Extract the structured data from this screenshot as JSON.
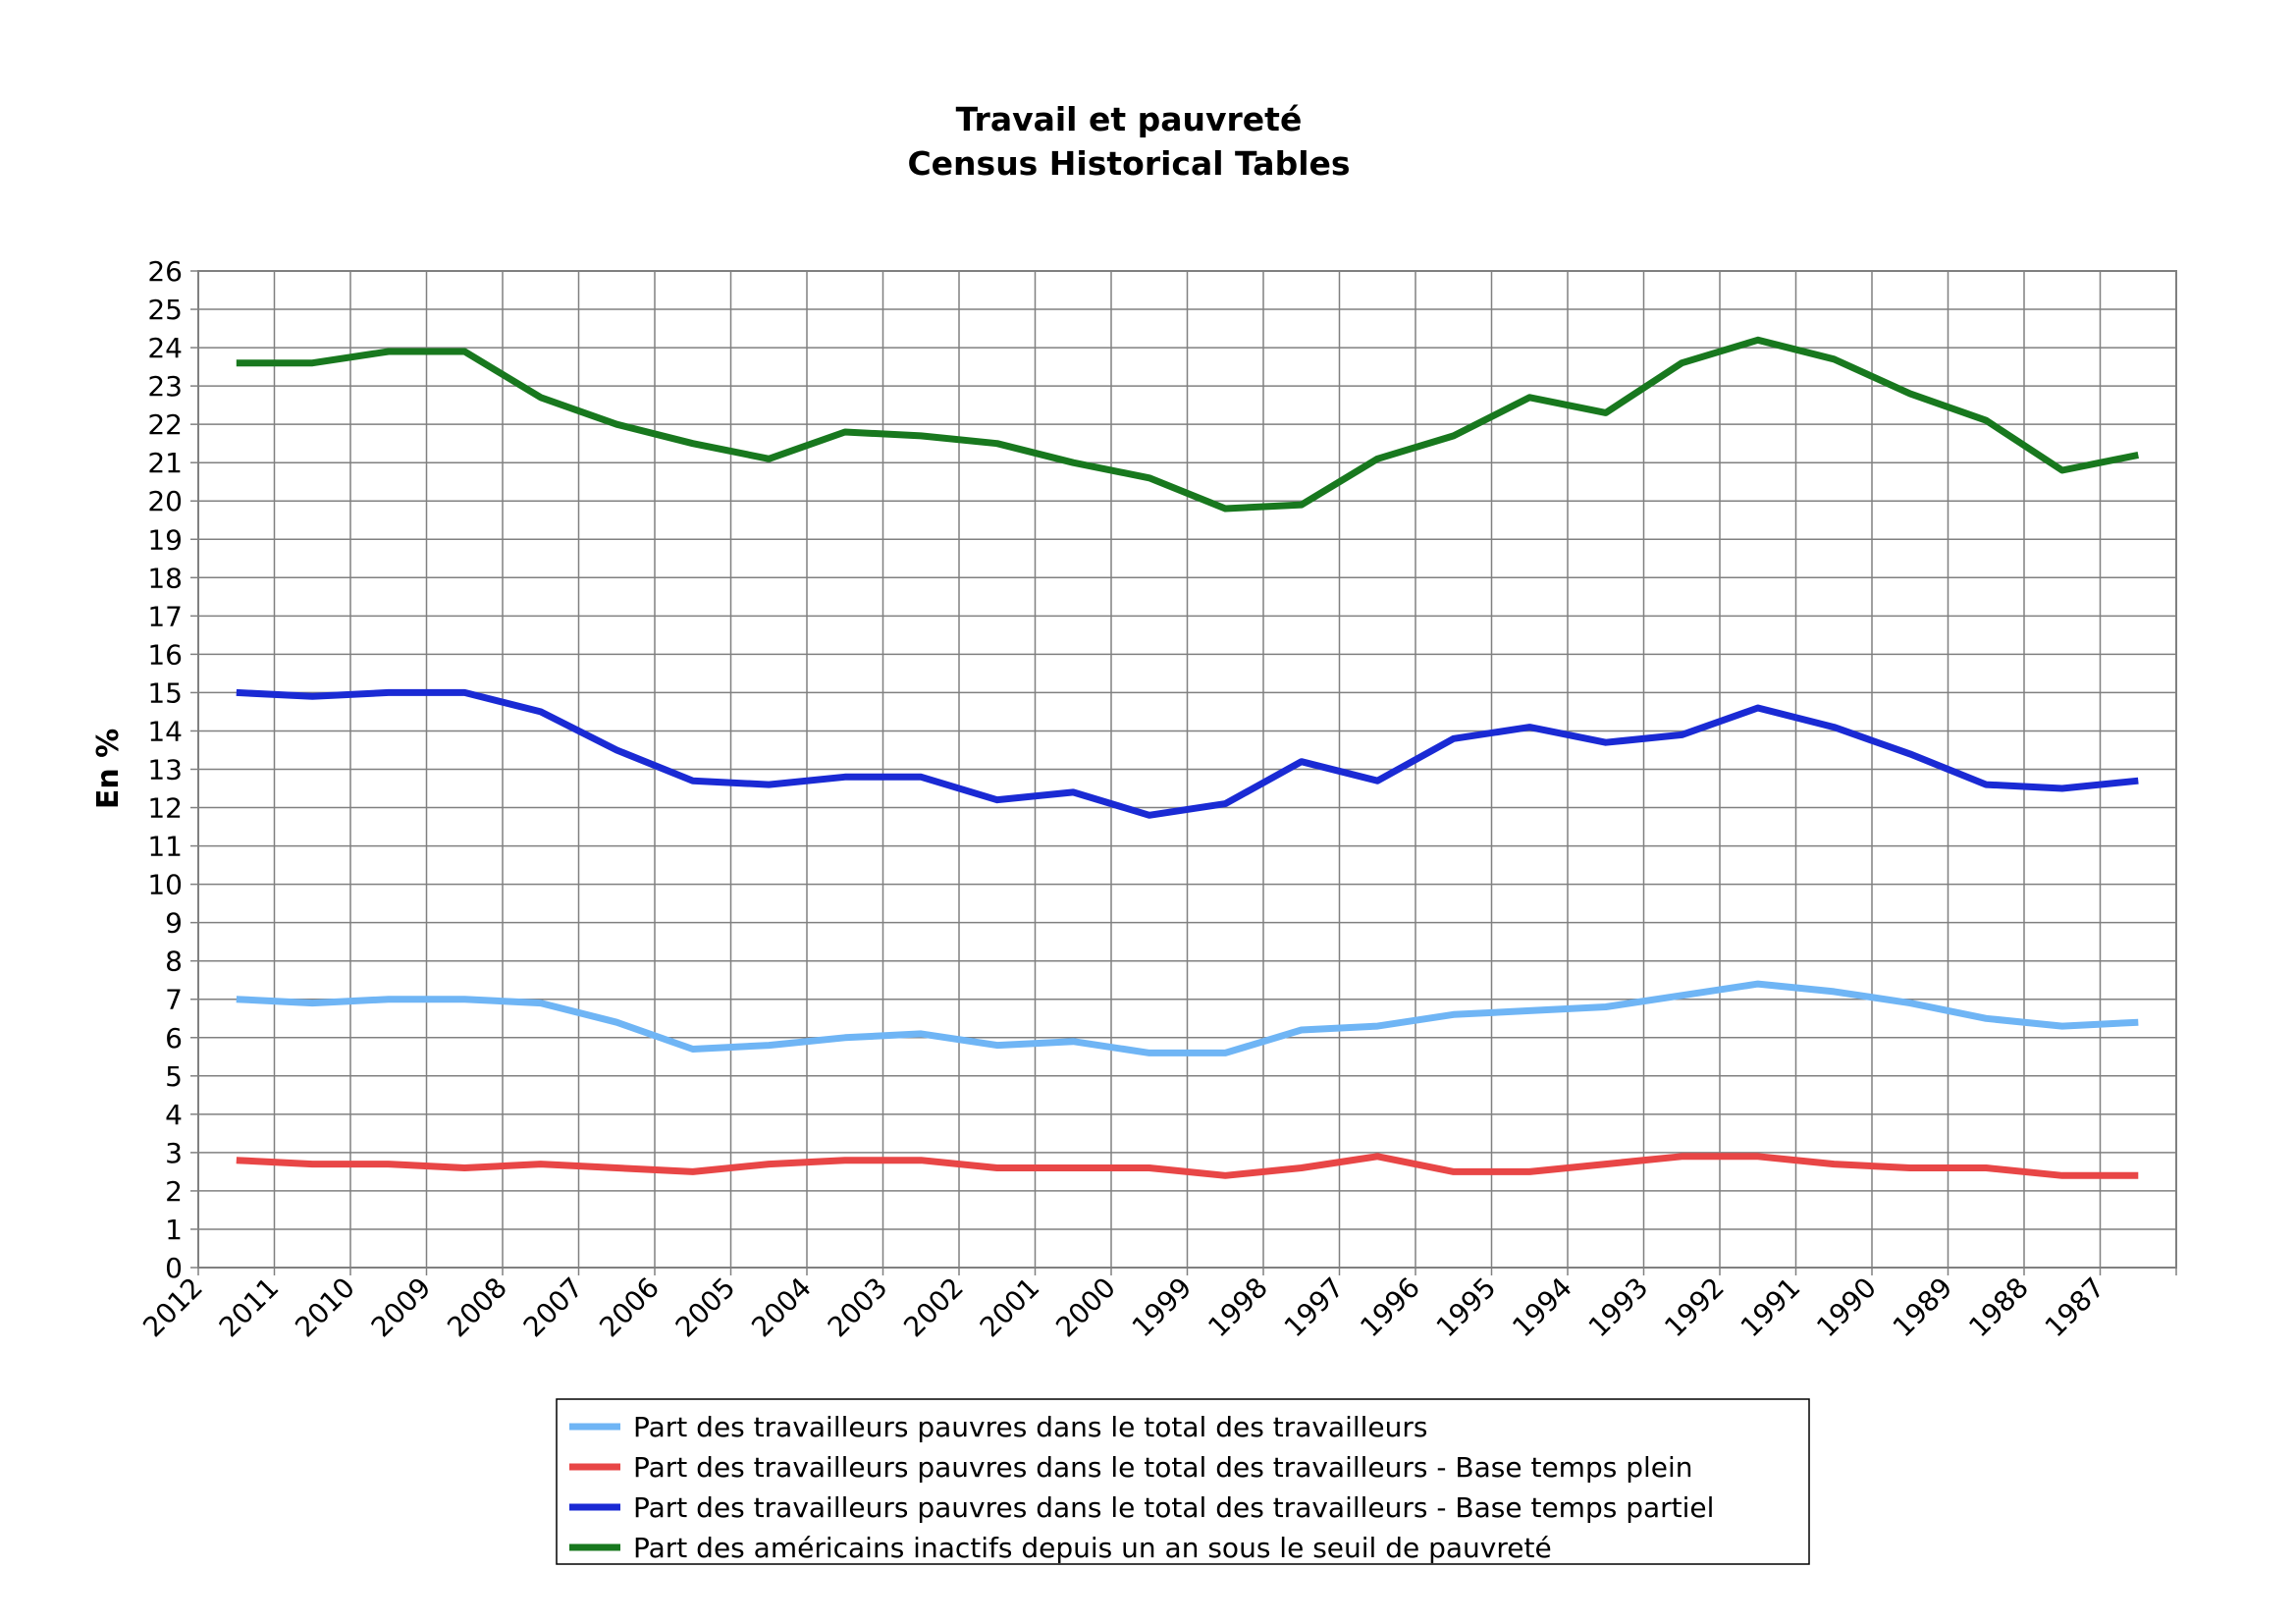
{
  "chart_data": {
    "type": "line",
    "title": "Travail et pauvreté",
    "subtitle": "Census Historical Tables",
    "xlabel": "",
    "ylabel": "En %",
    "ylim": [
      0,
      26
    ],
    "grid": true,
    "legend_position": "bottom",
    "categories": [
      "2012",
      "2011",
      "2010",
      "2009",
      "2008",
      "2007",
      "2006",
      "2005",
      "2004",
      "2003",
      "2002",
      "2001",
      "2000",
      "1999",
      "1998",
      "1997",
      "1996",
      "1995",
      "1994",
      "1993",
      "1992",
      "1991",
      "1990",
      "1989",
      "1988",
      "1987"
    ],
    "y_ticks": [
      "0",
      "1",
      "2",
      "3",
      "4",
      "5",
      "6",
      "7",
      "8",
      "9",
      "10",
      "11",
      "12",
      "13",
      "14",
      "15",
      "16",
      "17",
      "18",
      "19",
      "20",
      "21",
      "22",
      "23",
      "24",
      "25",
      "26"
    ],
    "series": [
      {
        "name": "Part des travailleurs pauvres dans le total des travailleurs",
        "color": "#6fb5f5",
        "values": [
          7.0,
          6.9,
          7.0,
          7.0,
          6.9,
          6.4,
          5.7,
          5.8,
          6.0,
          6.1,
          5.8,
          5.9,
          5.6,
          5.6,
          6.2,
          6.3,
          6.6,
          6.7,
          6.8,
          7.1,
          7.4,
          7.2,
          6.9,
          6.5,
          6.3,
          6.4
        ]
      },
      {
        "name": "Part des travailleurs pauvres dans le total des travailleurs - Base temps plein",
        "color": "#e84646",
        "values": [
          2.8,
          2.7,
          2.7,
          2.6,
          2.7,
          2.6,
          2.5,
          2.7,
          2.8,
          2.8,
          2.6,
          2.6,
          2.6,
          2.4,
          2.6,
          2.9,
          2.5,
          2.5,
          2.7,
          2.9,
          2.9,
          2.7,
          2.6,
          2.6,
          2.4,
          2.4
        ]
      },
      {
        "name": "Part des travailleurs pauvres dans le total des travailleurs - Base temps partiel",
        "color": "#1a2ad4",
        "values": [
          15.0,
          14.9,
          15.0,
          15.0,
          14.5,
          13.5,
          12.7,
          12.6,
          12.8,
          12.8,
          12.2,
          12.4,
          11.8,
          12.1,
          13.2,
          12.7,
          13.8,
          14.1,
          13.7,
          13.9,
          14.6,
          14.1,
          13.4,
          12.6,
          12.5,
          12.7
        ]
      },
      {
        "name": "Part des américains inactifs depuis un an sous le seuil de pauvreté",
        "color": "#18781e",
        "values": [
          23.6,
          23.6,
          23.9,
          23.9,
          22.7,
          22.0,
          21.5,
          21.1,
          21.8,
          21.7,
          21.5,
          21.0,
          20.6,
          19.8,
          19.9,
          21.1,
          21.7,
          22.7,
          22.3,
          23.6,
          24.2,
          23.7,
          22.8,
          22.1,
          20.8,
          21.2
        ]
      }
    ]
  }
}
